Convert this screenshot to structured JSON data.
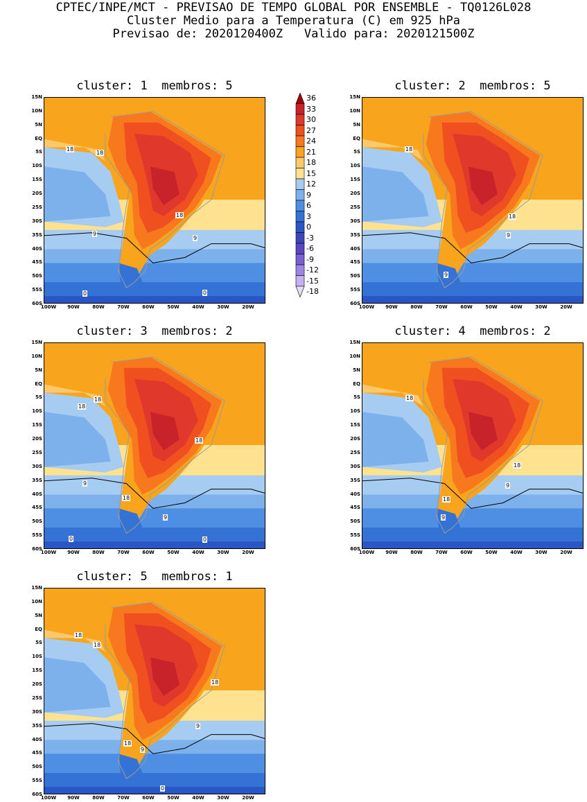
{
  "header": {
    "line1": "CPTEC/INPE/MCT - PREVISAO DE TEMPO GLOBAL POR ENSEMBLE - TQ0126L028",
    "line2": "Cluster Medio para a Temperatura (C) em 925 hPa",
    "line3": "Previsao de: 2020120400Z   Valido para: 2020121500Z"
  },
  "axes": {
    "lat_ticks": [
      "15N",
      "10N",
      "5N",
      "EQ",
      "5S",
      "10S",
      "15S",
      "20S",
      "25S",
      "30S",
      "35S",
      "40S",
      "45S",
      "50S",
      "55S",
      "60S"
    ],
    "lon_ticks": [
      "100W",
      "90W",
      "80W",
      "70W",
      "60W",
      "50W",
      "40W",
      "30W",
      "20W"
    ]
  },
  "colorbar": {
    "labels": [
      "36",
      "33",
      "30",
      "27",
      "24",
      "21",
      "18",
      "15",
      "12",
      "9",
      "6",
      "3",
      "0",
      "-3",
      "-6",
      "-9",
      "-12",
      "-15",
      "-18"
    ],
    "colors": [
      "#a50000",
      "#c8222a",
      "#e0392b",
      "#f04f1f",
      "#f8781e",
      "#f9a41d",
      "#fbc86c",
      "#fee28f",
      "#a6ccf1",
      "#7cb1ec",
      "#4e8fe3",
      "#3473d5",
      "#2956c4",
      "#3f44b8",
      "#5a46c4",
      "#7b5fd3",
      "#9e85e2",
      "#c3b2ef",
      "#e6def8"
    ]
  },
  "panels": [
    {
      "title": "cluster: 1  membros: 5",
      "labels": [
        "18",
        "18",
        "18",
        "9",
        "9",
        "0",
        "0"
      ]
    },
    {
      "title": "cluster: 2  membros: 5",
      "labels": [
        "18",
        "18",
        "9",
        "9"
      ]
    },
    {
      "title": "cluster: 3  membros: 2",
      "labels": [
        "18",
        "18",
        "18",
        "18",
        "9",
        "9",
        "0",
        "0"
      ]
    },
    {
      "title": "cluster: 4  membros: 2",
      "labels": [
        "18",
        "18",
        "18",
        "9",
        "9"
      ]
    },
    {
      "title": "cluster: 5  membros: 1",
      "labels": [
        "18",
        "18",
        "18",
        "18",
        "9",
        "9",
        "0"
      ]
    }
  ]
}
